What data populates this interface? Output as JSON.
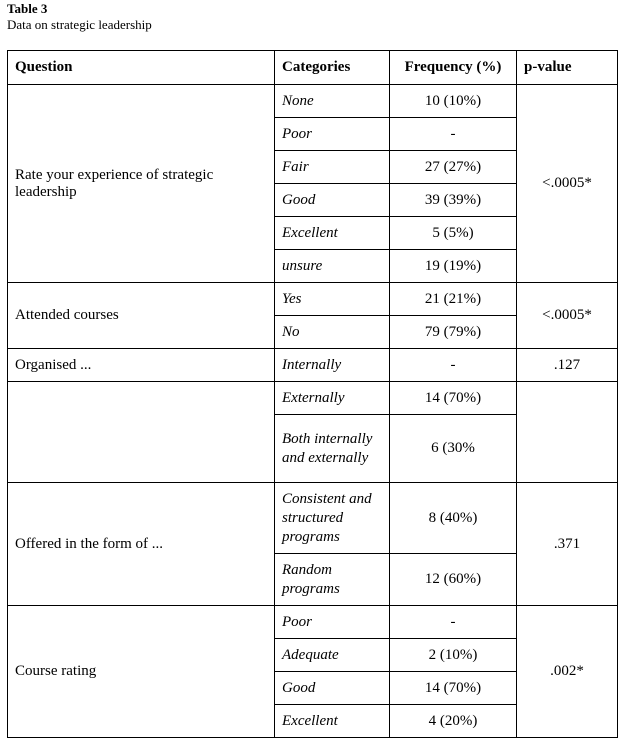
{
  "caption": {
    "title": "Table 3",
    "subtitle": "Data on strategic leadership"
  },
  "headers": [
    "Question",
    "Categories",
    "Frequency (%)",
    "p-value"
  ],
  "groups": [
    {
      "question": "Rate your experience of strategic leadership",
      "p_value": "<.0005*",
      "rows": [
        {
          "category": "None",
          "frequency": "10 (10%)"
        },
        {
          "category": "Poor",
          "frequency": "-"
        },
        {
          "category": "Fair",
          "frequency": "27 (27%)"
        },
        {
          "category": "Good",
          "frequency": "39 (39%)"
        },
        {
          "category": "Excellent",
          "frequency": "5 (5%)"
        },
        {
          "category": "unsure",
          "frequency": "19 (19%)"
        }
      ]
    },
    {
      "question": "Attended courses",
      "p_value": "<.0005*",
      "rows": [
        {
          "category": "Yes",
          "frequency": "21 (21%)"
        },
        {
          "category": "No",
          "frequency": "79 (79%)"
        }
      ]
    },
    {
      "question": "Organised ...",
      "p_value": ".127",
      "rows": [
        {
          "category": "Internally",
          "frequency": "-"
        }
      ]
    },
    {
      "question": "",
      "p_value": "",
      "rows": [
        {
          "category": "Externally",
          "frequency": "14 (70%)"
        },
        {
          "category": "Both internally and externally",
          "frequency": "6 (30%"
        }
      ]
    },
    {
      "question": "Offered in the form of ...",
      "p_value": ".371",
      "rows": [
        {
          "category": "Consistent and structured programs",
          "frequency": "8 (40%)"
        },
        {
          "category": "Random programs",
          "frequency": "12 (60%)"
        }
      ]
    },
    {
      "question": "Course rating",
      "p_value": ".002*",
      "rows": [
        {
          "category": "Poor",
          "frequency": "-"
        },
        {
          "category": "Adequate",
          "frequency": "2 (10%)"
        },
        {
          "category": "Good",
          "frequency": "14 (70%)"
        },
        {
          "category": "Excellent",
          "frequency": "4 (20%)"
        }
      ]
    }
  ]
}
